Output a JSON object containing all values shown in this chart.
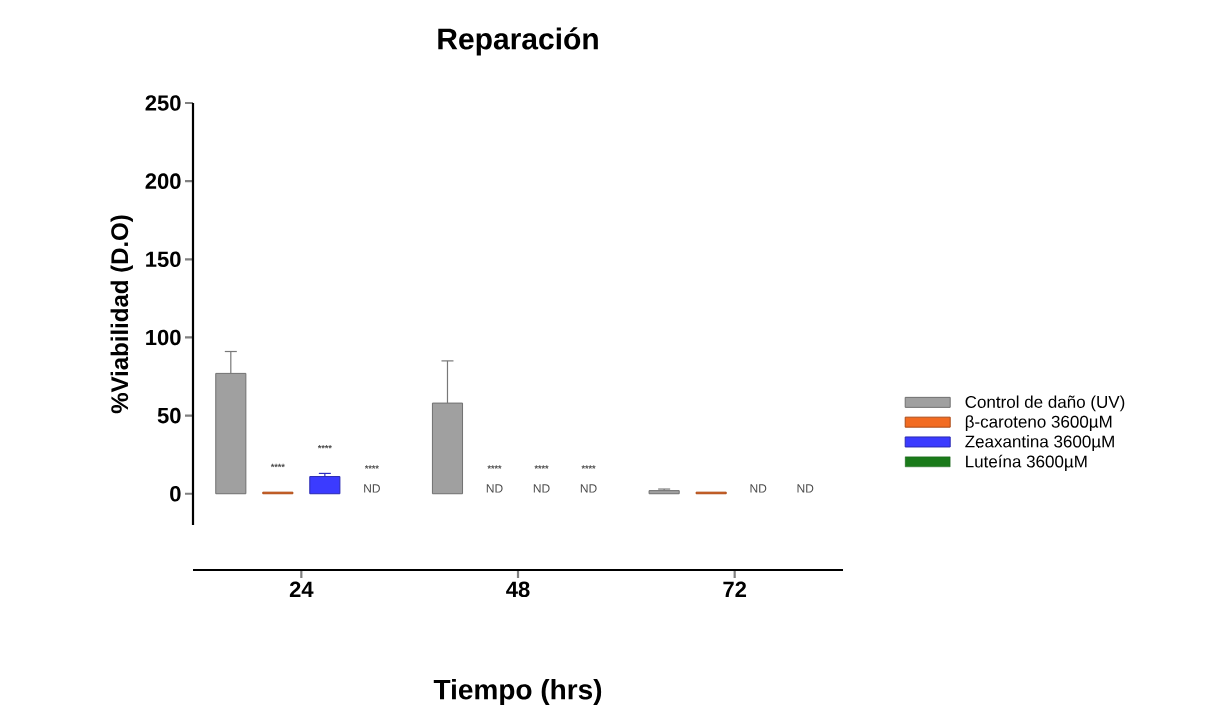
{
  "chart_data": {
    "type": "bar",
    "title": "Reparación",
    "xlabel": "Tiempo (hrs)",
    "ylabel": "%Viabilidad (D.O)",
    "categories": [
      "24",
      "48",
      "72"
    ],
    "series": [
      {
        "name": "Control de daño (UV)",
        "color": "#a0a0a0",
        "values": [
          77,
          58,
          2
        ],
        "errors": [
          [
            77,
            91
          ],
          [
            58,
            85
          ],
          [
            2,
            3
          ]
        ]
      },
      {
        "name": "β-caroteno 3600µM",
        "color": "#f26b21",
        "values": [
          1,
          null,
          1
        ],
        "value_labels": [
          null,
          "ND",
          null
        ]
      },
      {
        "name": "Zeaxantina 3600µM",
        "color": "#3b3bff",
        "values": [
          11,
          null,
          null
        ],
        "errors": [
          [
            11,
            13
          ],
          null,
          null
        ],
        "value_labels": [
          null,
          "ND",
          "ND"
        ]
      },
      {
        "name": "Luteína 3600µM",
        "color": "#1a7a1a",
        "values": [
          null,
          null,
          null
        ],
        "value_labels": [
          "ND",
          "ND",
          "ND"
        ]
      }
    ],
    "annotations": [
      "****",
      "****",
      "****",
      "****",
      "****",
      "****"
    ],
    "ylim": [
      -20,
      250
    ],
    "yticks": [
      0,
      50,
      100,
      150,
      200,
      250
    ],
    "grid": false,
    "legend": "right"
  }
}
